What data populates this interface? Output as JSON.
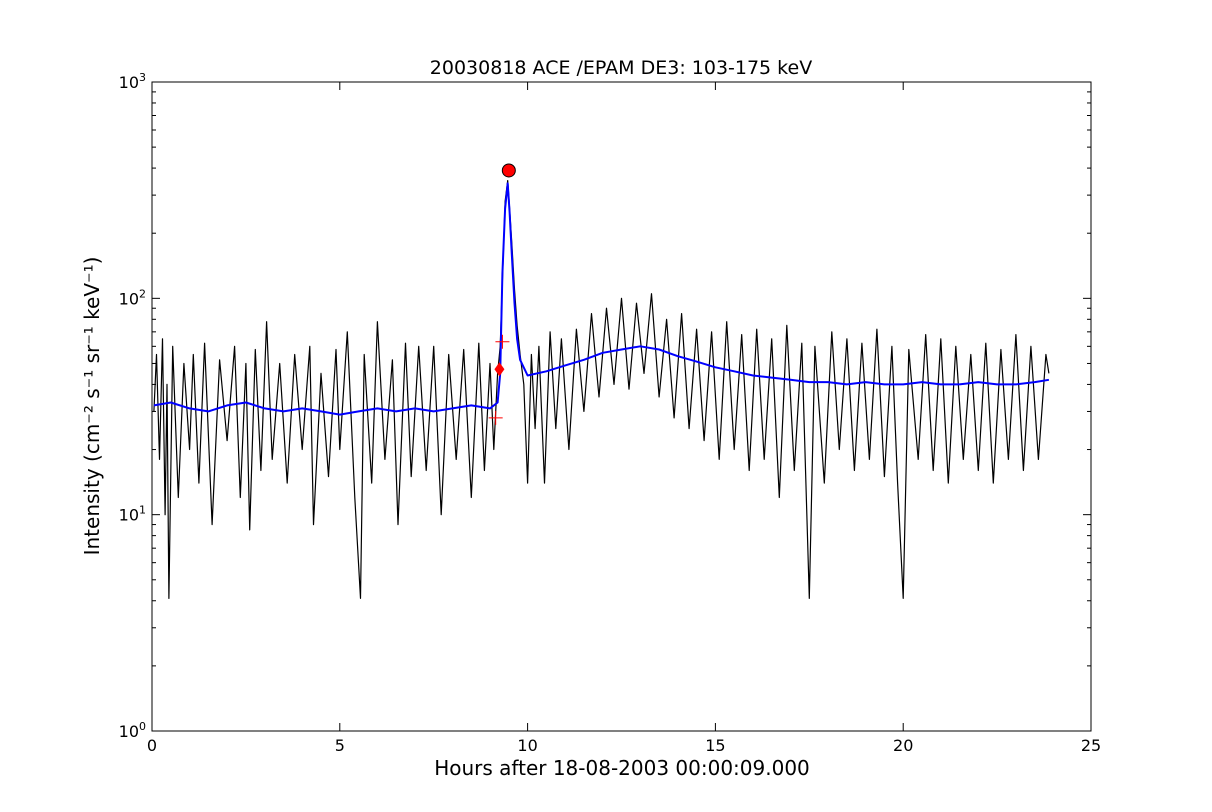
{
  "chart_data": {
    "type": "line",
    "title": "20030818 ACE /EPAM DE3: 103-175 keV",
    "xlabel": "Hours after 18-08-2003 00:00:09.000",
    "ylabel": "Intensity (cm⁻² s⁻¹ sr⁻¹ keV⁻¹)",
    "xlim": [
      0,
      25
    ],
    "ylim": [
      1,
      1000
    ],
    "yscale": "log",
    "grid": false,
    "x_ticks": [
      0,
      5,
      10,
      15,
      20,
      25
    ],
    "x_tick_labels": [
      "0",
      "5",
      "10",
      "15",
      "20",
      "25"
    ],
    "y_ticks": [
      1,
      10,
      100,
      1000
    ],
    "y_tick_labels": [
      {
        "base": "10",
        "exp": "0"
      },
      {
        "base": "10",
        "exp": "1"
      },
      {
        "base": "10",
        "exp": "2"
      },
      {
        "base": "10",
        "exp": "3"
      }
    ],
    "series": [
      {
        "color": "#000000",
        "style": "raw",
        "points": [
          [
            0.05,
            30
          ],
          [
            0.12,
            55
          ],
          [
            0.2,
            18
          ],
          [
            0.28,
            65
          ],
          [
            0.35,
            10
          ],
          [
            0.4,
            40
          ],
          [
            0.45,
            4.1
          ],
          [
            0.55,
            60
          ],
          [
            0.7,
            12
          ],
          [
            0.85,
            50
          ],
          [
            1.0,
            20
          ],
          [
            1.1,
            55
          ],
          [
            1.25,
            14
          ],
          [
            1.4,
            62
          ],
          [
            1.6,
            9
          ],
          [
            1.8,
            52
          ],
          [
            2.0,
            22
          ],
          [
            2.2,
            60
          ],
          [
            2.35,
            12
          ],
          [
            2.5,
            50
          ],
          [
            2.6,
            8.5
          ],
          [
            2.75,
            58
          ],
          [
            2.9,
            16
          ],
          [
            3.05,
            78
          ],
          [
            3.2,
            18
          ],
          [
            3.4,
            50
          ],
          [
            3.6,
            14
          ],
          [
            3.8,
            55
          ],
          [
            4.0,
            20
          ],
          [
            4.2,
            60
          ],
          [
            4.3,
            9
          ],
          [
            4.5,
            45
          ],
          [
            4.7,
            15
          ],
          [
            4.9,
            58
          ],
          [
            5.0,
            20
          ],
          [
            5.2,
            70
          ],
          [
            5.4,
            12
          ],
          [
            5.55,
            4.1
          ],
          [
            5.65,
            55
          ],
          [
            5.85,
            14
          ],
          [
            6.0,
            78
          ],
          [
            6.2,
            18
          ],
          [
            6.4,
            52
          ],
          [
            6.55,
            9
          ],
          [
            6.75,
            62
          ],
          [
            6.9,
            15
          ],
          [
            7.1,
            60
          ],
          [
            7.3,
            16
          ],
          [
            7.5,
            60
          ],
          [
            7.7,
            10
          ],
          [
            7.9,
            55
          ],
          [
            8.1,
            18
          ],
          [
            8.3,
            58
          ],
          [
            8.5,
            12
          ],
          [
            8.7,
            62
          ],
          [
            8.85,
            16
          ],
          [
            9.0,
            50
          ],
          [
            9.1,
            20
          ],
          [
            9.2,
            45
          ],
          [
            9.27,
            60
          ],
          [
            9.33,
            120
          ],
          [
            9.4,
            280
          ],
          [
            9.47,
            350
          ],
          [
            9.52,
            260
          ],
          [
            9.58,
            180
          ],
          [
            9.65,
            110
          ],
          [
            9.72,
            75
          ],
          [
            9.8,
            55
          ],
          [
            9.9,
            40
          ],
          [
            10.0,
            14
          ],
          [
            10.1,
            55
          ],
          [
            10.2,
            25
          ],
          [
            10.3,
            60
          ],
          [
            10.45,
            14
          ],
          [
            10.6,
            70
          ],
          [
            10.75,
            25
          ],
          [
            10.9,
            65
          ],
          [
            11.1,
            20
          ],
          [
            11.3,
            72
          ],
          [
            11.5,
            30
          ],
          [
            11.7,
            85
          ],
          [
            11.9,
            35
          ],
          [
            12.1,
            90
          ],
          [
            12.3,
            40
          ],
          [
            12.5,
            100
          ],
          [
            12.7,
            38
          ],
          [
            12.9,
            95
          ],
          [
            13.1,
            45
          ],
          [
            13.3,
            105
          ],
          [
            13.5,
            35
          ],
          [
            13.7,
            80
          ],
          [
            13.9,
            28
          ],
          [
            14.1,
            85
          ],
          [
            14.3,
            25
          ],
          [
            14.5,
            72
          ],
          [
            14.7,
            22
          ],
          [
            14.9,
            70
          ],
          [
            15.1,
            18
          ],
          [
            15.3,
            78
          ],
          [
            15.5,
            20
          ],
          [
            15.7,
            68
          ],
          [
            15.9,
            16
          ],
          [
            16.1,
            72
          ],
          [
            16.3,
            18
          ],
          [
            16.5,
            65
          ],
          [
            16.7,
            12
          ],
          [
            16.9,
            75
          ],
          [
            17.1,
            16
          ],
          [
            17.3,
            62
          ],
          [
            17.5,
            4.1
          ],
          [
            17.65,
            60
          ],
          [
            17.9,
            14
          ],
          [
            18.1,
            70
          ],
          [
            18.3,
            20
          ],
          [
            18.5,
            65
          ],
          [
            18.7,
            16
          ],
          [
            18.9,
            62
          ],
          [
            19.1,
            18
          ],
          [
            19.3,
            72
          ],
          [
            19.5,
            15
          ],
          [
            19.7,
            60
          ],
          [
            19.85,
            14
          ],
          [
            20.0,
            4.1
          ],
          [
            20.15,
            58
          ],
          [
            20.4,
            18
          ],
          [
            20.6,
            68
          ],
          [
            20.8,
            16
          ],
          [
            21.0,
            65
          ],
          [
            21.2,
            14
          ],
          [
            21.4,
            60
          ],
          [
            21.6,
            18
          ],
          [
            21.8,
            55
          ],
          [
            22.0,
            16
          ],
          [
            22.2,
            62
          ],
          [
            22.4,
            14
          ],
          [
            22.6,
            58
          ],
          [
            22.8,
            18
          ],
          [
            23.0,
            68
          ],
          [
            23.2,
            16
          ],
          [
            23.4,
            60
          ],
          [
            23.6,
            18
          ],
          [
            23.8,
            55
          ],
          [
            23.88,
            45
          ]
        ]
      },
      {
        "color": "#0000ff",
        "style": "smoothed",
        "points": [
          [
            0.05,
            32
          ],
          [
            0.5,
            33
          ],
          [
            1.0,
            31
          ],
          [
            1.5,
            30
          ],
          [
            2.0,
            32
          ],
          [
            2.5,
            33
          ],
          [
            3.0,
            31
          ],
          [
            3.5,
            30
          ],
          [
            4.0,
            31
          ],
          [
            4.5,
            30
          ],
          [
            5.0,
            29
          ],
          [
            5.5,
            30
          ],
          [
            6.0,
            31
          ],
          [
            6.5,
            30
          ],
          [
            7.0,
            31
          ],
          [
            7.5,
            30
          ],
          [
            8.0,
            31
          ],
          [
            8.5,
            32
          ],
          [
            9.0,
            31
          ],
          [
            9.2,
            33
          ],
          [
            9.27,
            45
          ],
          [
            9.33,
            130
          ],
          [
            9.4,
            260
          ],
          [
            9.47,
            340
          ],
          [
            9.52,
            250
          ],
          [
            9.58,
            160
          ],
          [
            9.65,
            95
          ],
          [
            9.72,
            65
          ],
          [
            9.8,
            52
          ],
          [
            10.0,
            44
          ],
          [
            10.5,
            46
          ],
          [
            11.0,
            49
          ],
          [
            11.5,
            52
          ],
          [
            12.0,
            56
          ],
          [
            12.5,
            58
          ],
          [
            13.0,
            60
          ],
          [
            13.5,
            58
          ],
          [
            14.0,
            54
          ],
          [
            14.5,
            51
          ],
          [
            15.0,
            48
          ],
          [
            15.5,
            46
          ],
          [
            16.0,
            44
          ],
          [
            16.5,
            43
          ],
          [
            17.0,
            42
          ],
          [
            17.5,
            41
          ],
          [
            18.0,
            41
          ],
          [
            18.5,
            40
          ],
          [
            19.0,
            41
          ],
          [
            19.5,
            40
          ],
          [
            20.0,
            40
          ],
          [
            20.5,
            41
          ],
          [
            21.0,
            40
          ],
          [
            21.5,
            40
          ],
          [
            22.0,
            41
          ],
          [
            22.5,
            40
          ],
          [
            23.0,
            40
          ],
          [
            23.5,
            41
          ],
          [
            23.88,
            42
          ]
        ]
      }
    ],
    "markers": [
      {
        "type": "circle",
        "x": 9.5,
        "y": 390,
        "color": "#ff0000"
      },
      {
        "type": "diamond",
        "x": 9.25,
        "y": 47,
        "color": "#ff0000"
      },
      {
        "type": "plus",
        "x": 9.33,
        "y": 63,
        "color": "#ff0000"
      },
      {
        "type": "plus",
        "x": 9.15,
        "y": 28,
        "color": "#ff0000"
      }
    ]
  }
}
